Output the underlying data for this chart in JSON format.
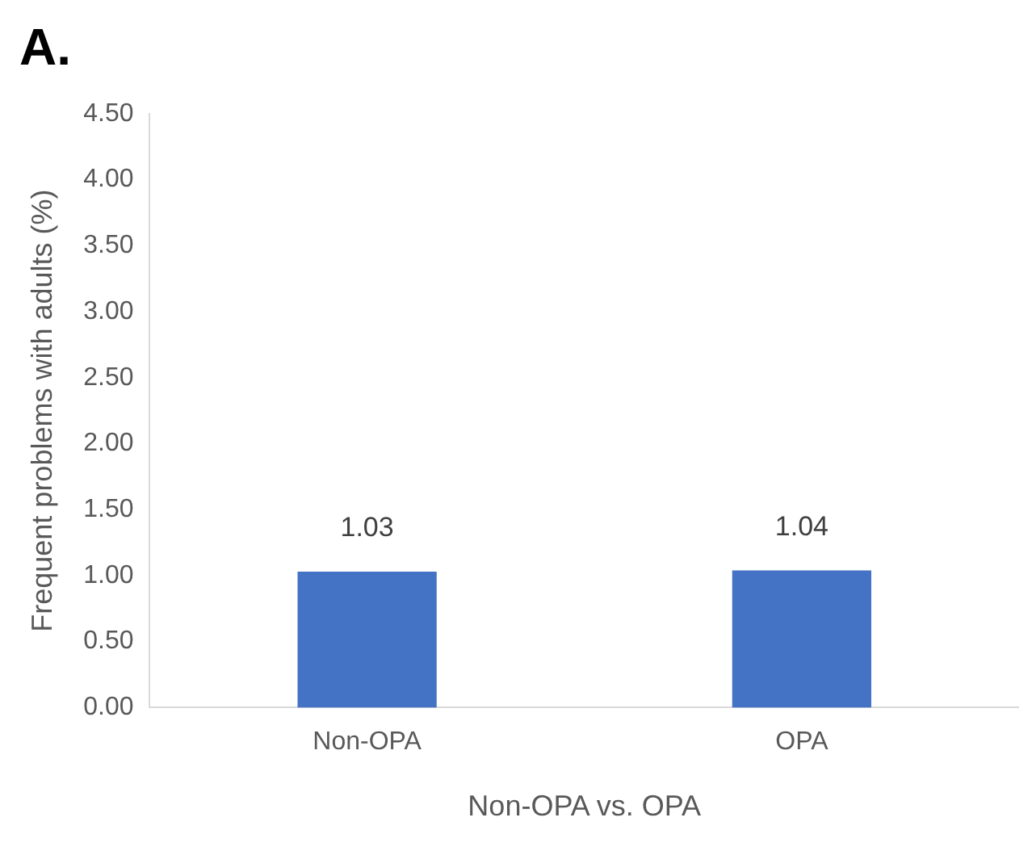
{
  "chart_data": {
    "type": "bar",
    "title": "A.",
    "xlabel": "Non-OPA vs. OPA",
    "ylabel": "Frequent problems with adults (%)",
    "categories": [
      "Non-OPA",
      "OPA"
    ],
    "values": [
      1.03,
      1.04
    ],
    "color": "#4472c4",
    "ylim": [
      0,
      4.5
    ],
    "yticks": [
      {
        "value": 0,
        "label": "0.00"
      },
      {
        "value": 0.5,
        "label": "0.50"
      },
      {
        "value": 1,
        "label": "1.00"
      },
      {
        "value": 1.5,
        "label": "1.50"
      },
      {
        "value": 2,
        "label": "2.00"
      },
      {
        "value": 2.5,
        "label": "2.50"
      },
      {
        "value": 3,
        "label": "3.00"
      },
      {
        "value": 3.5,
        "label": "3.50"
      },
      {
        "value": 4,
        "label": "4.00"
      },
      {
        "value": 4.5,
        "label": "4.50"
      }
    ],
    "grid": false,
    "legend": false,
    "data_labels": true
  }
}
